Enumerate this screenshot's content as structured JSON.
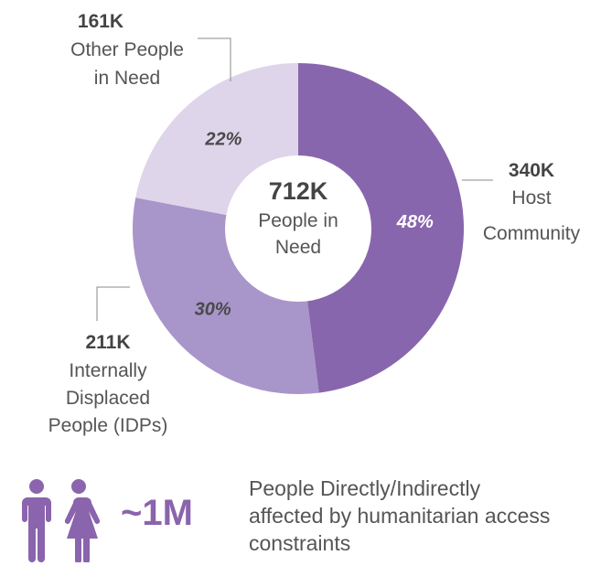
{
  "colors": {
    "host_community": "#8866ad",
    "internally_displaced": "#a895c9",
    "other_people": "#ded5ea",
    "center": "#ffffff",
    "percent_dark": "#4a4a4a",
    "percent_light": "#ffffff",
    "accent": "#8a64ad"
  },
  "chart_data": {
    "type": "pie",
    "variant": "donut",
    "center_label": {
      "value": "712K",
      "text_lines": [
        "People in",
        "Need"
      ]
    },
    "slices": [
      {
        "key": "host_community",
        "value_label": "340K",
        "label_lines": [
          "Host",
          "Community"
        ],
        "percent": 48,
        "percent_label": "48%"
      },
      {
        "key": "internally_displaced",
        "value_label": "211K",
        "label_lines": [
          "Internally",
          "Displaced",
          "People (IDPs)"
        ],
        "percent": 30,
        "percent_label": "30%"
      },
      {
        "key": "other_people",
        "value_label": "161K",
        "label_lines": [
          "Other People",
          "in Need"
        ],
        "percent": 22,
        "percent_label": "22%"
      }
    ]
  },
  "footer": {
    "icon": "people-icon",
    "total_value": "~1M",
    "note_lines": [
      "People Directly/Indirectly",
      "affected by humanitarian access",
      "constraints"
    ]
  }
}
